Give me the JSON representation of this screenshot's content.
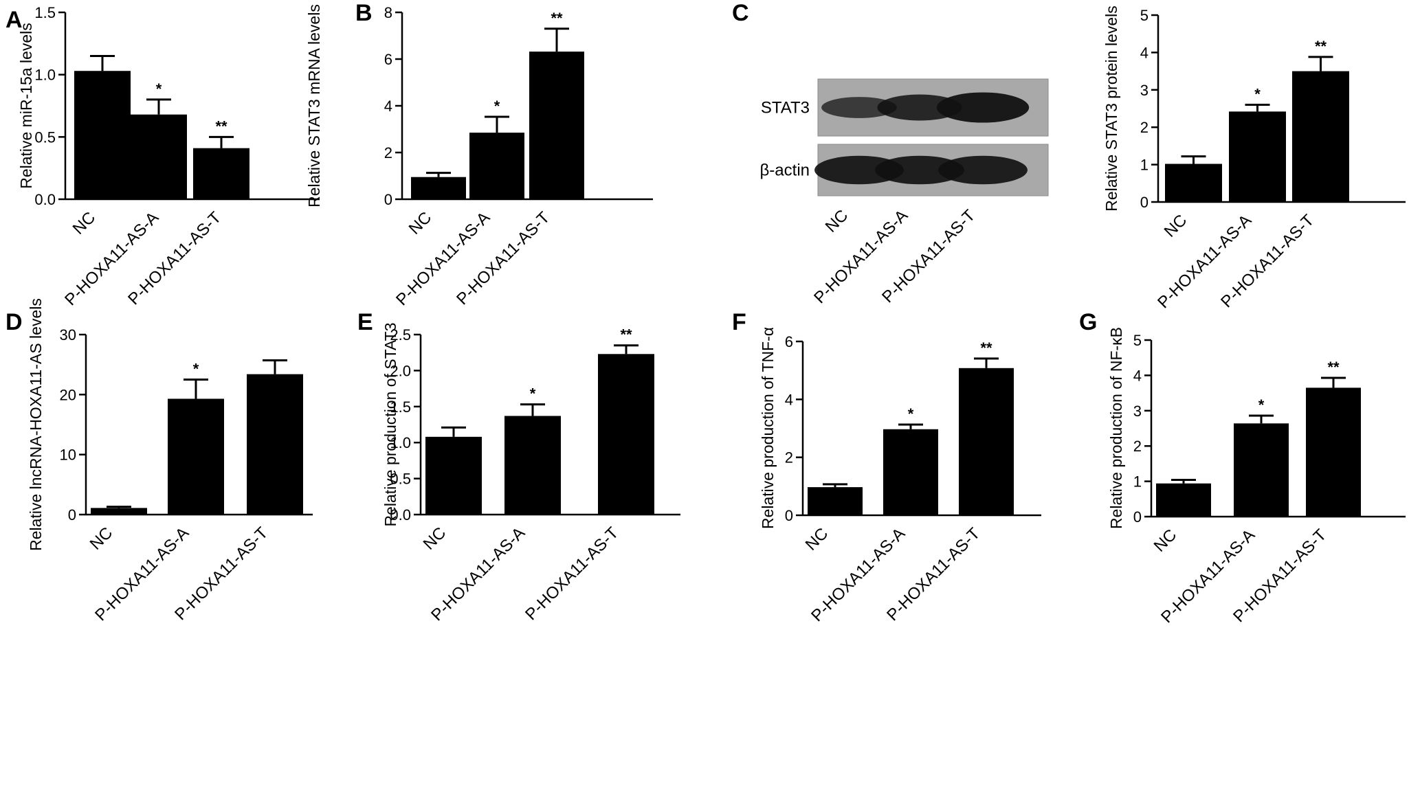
{
  "figure": {
    "background": "#ffffff",
    "bar_color": "#000000"
  },
  "chart_data": [
    {
      "panel": "A",
      "type": "bar",
      "categories": [
        "NC",
        "P-HOXA11-AS-A",
        "P-HOXA11-AS-T"
      ],
      "values": [
        1.03,
        0.68,
        0.41
      ],
      "errors": [
        0.12,
        0.12,
        0.09
      ],
      "significance": [
        "",
        "*",
        "**"
      ],
      "ylabel": "Relative miR-15a levels",
      "ylim": [
        0,
        1.5
      ],
      "yticks": [
        0.0,
        0.5,
        1.0,
        1.5
      ],
      "ytick_labels": [
        "0.0",
        "0.5",
        "1.0",
        "1.5"
      ],
      "grid": false
    },
    {
      "panel": "B",
      "type": "bar",
      "categories": [
        "NC",
        "P-HOXA11-AS-A",
        "P-HOXA11-AS-T"
      ],
      "values": [
        0.95,
        2.85,
        6.32
      ],
      "errors": [
        0.18,
        0.68,
        0.98
      ],
      "significance": [
        "",
        "*",
        "**"
      ],
      "ylabel": "Relative STAT3 mRNA levels",
      "ylim": [
        0,
        8
      ],
      "yticks": [
        0,
        2,
        4,
        6,
        8
      ],
      "ytick_labels": [
        "0",
        "2",
        "4",
        "6",
        "8"
      ],
      "grid": false
    },
    {
      "panel": "C",
      "type": "bar",
      "categories": [
        "NC",
        "P-HOXA11-AS-A",
        "P-HOXA11-AS-T"
      ],
      "values": [
        1.02,
        2.42,
        3.5
      ],
      "errors": [
        0.2,
        0.18,
        0.38
      ],
      "significance": [
        "",
        "*",
        "**"
      ],
      "ylabel": "Relative STAT3 protein levels",
      "ylim": [
        0,
        5
      ],
      "yticks": [
        0,
        1,
        2,
        3,
        4,
        5
      ],
      "ytick_labels": [
        "0",
        "1",
        "2",
        "3",
        "4",
        "5"
      ],
      "grid": false
    },
    {
      "panel": "D",
      "type": "bar",
      "categories": [
        "NC",
        "P-HOXA11-AS-A",
        "P-HOXA11-AS-T"
      ],
      "values": [
        1.1,
        19.3,
        23.4
      ],
      "errors": [
        0.2,
        3.2,
        2.3
      ],
      "significance": [
        "",
        "*",
        ""
      ],
      "ylabel": "Relative lncRNA-HOXA11-AS levels",
      "ylim": [
        0,
        30
      ],
      "yticks": [
        0,
        10,
        20,
        30
      ],
      "ytick_labels": [
        "0",
        "10",
        "20",
        "30"
      ],
      "grid": false
    },
    {
      "panel": "E",
      "type": "bar",
      "categories": [
        "NC",
        "P-HOXA11-AS-A",
        "P-HOXA11-AS-T"
      ],
      "values": [
        1.08,
        1.37,
        2.23
      ],
      "errors": [
        0.13,
        0.16,
        0.12
      ],
      "significance": [
        "",
        "*",
        "**"
      ],
      "ylabel": "Relative production of STAT3",
      "ylim": [
        0,
        2.5
      ],
      "yticks": [
        0.0,
        0.5,
        1.0,
        1.5,
        2.0,
        2.5
      ],
      "ytick_labels": [
        "0.0",
        "0.5",
        "1.0",
        "1.5",
        "2.0",
        "2.5"
      ],
      "grid": false
    },
    {
      "panel": "F",
      "type": "bar",
      "categories": [
        "NC",
        "P-HOXA11-AS-A",
        "P-HOXA11-AS-T"
      ],
      "values": [
        0.97,
        2.97,
        5.08
      ],
      "errors": [
        0.1,
        0.16,
        0.33
      ],
      "significance": [
        "",
        "*",
        "**"
      ],
      "ylabel": "Relative production of TNF-α",
      "ylim": [
        0,
        6
      ],
      "yticks": [
        0,
        2,
        4,
        6
      ],
      "ytick_labels": [
        "0",
        "2",
        "4",
        "6"
      ],
      "grid": false
    },
    {
      "panel": "G",
      "type": "bar",
      "categories": [
        "NC",
        "P-HOXA11-AS-A",
        "P-HOXA11-AS-T"
      ],
      "values": [
        0.94,
        2.64,
        3.65
      ],
      "errors": [
        0.1,
        0.22,
        0.28
      ],
      "significance": [
        "",
        "*",
        "**"
      ],
      "ylabel": "Relative production of NF-κB",
      "ylim": [
        0,
        5
      ],
      "yticks": [
        0,
        1,
        2,
        3,
        4,
        5
      ],
      "ytick_labels": [
        "0",
        "1",
        "2",
        "3",
        "4",
        "5"
      ],
      "grid": false
    }
  ],
  "western_blot": {
    "panel": "C",
    "rows": [
      {
        "label": "STAT3",
        "band_intensity": [
          0.45,
          0.75,
          1.0
        ]
      },
      {
        "label": "β-actin",
        "band_intensity": [
          0.9,
          0.9,
          0.9
        ]
      }
    ],
    "lanes": [
      "NC",
      "P-HOXA11-AS-A",
      "P-HOXA11-AS-T"
    ]
  }
}
